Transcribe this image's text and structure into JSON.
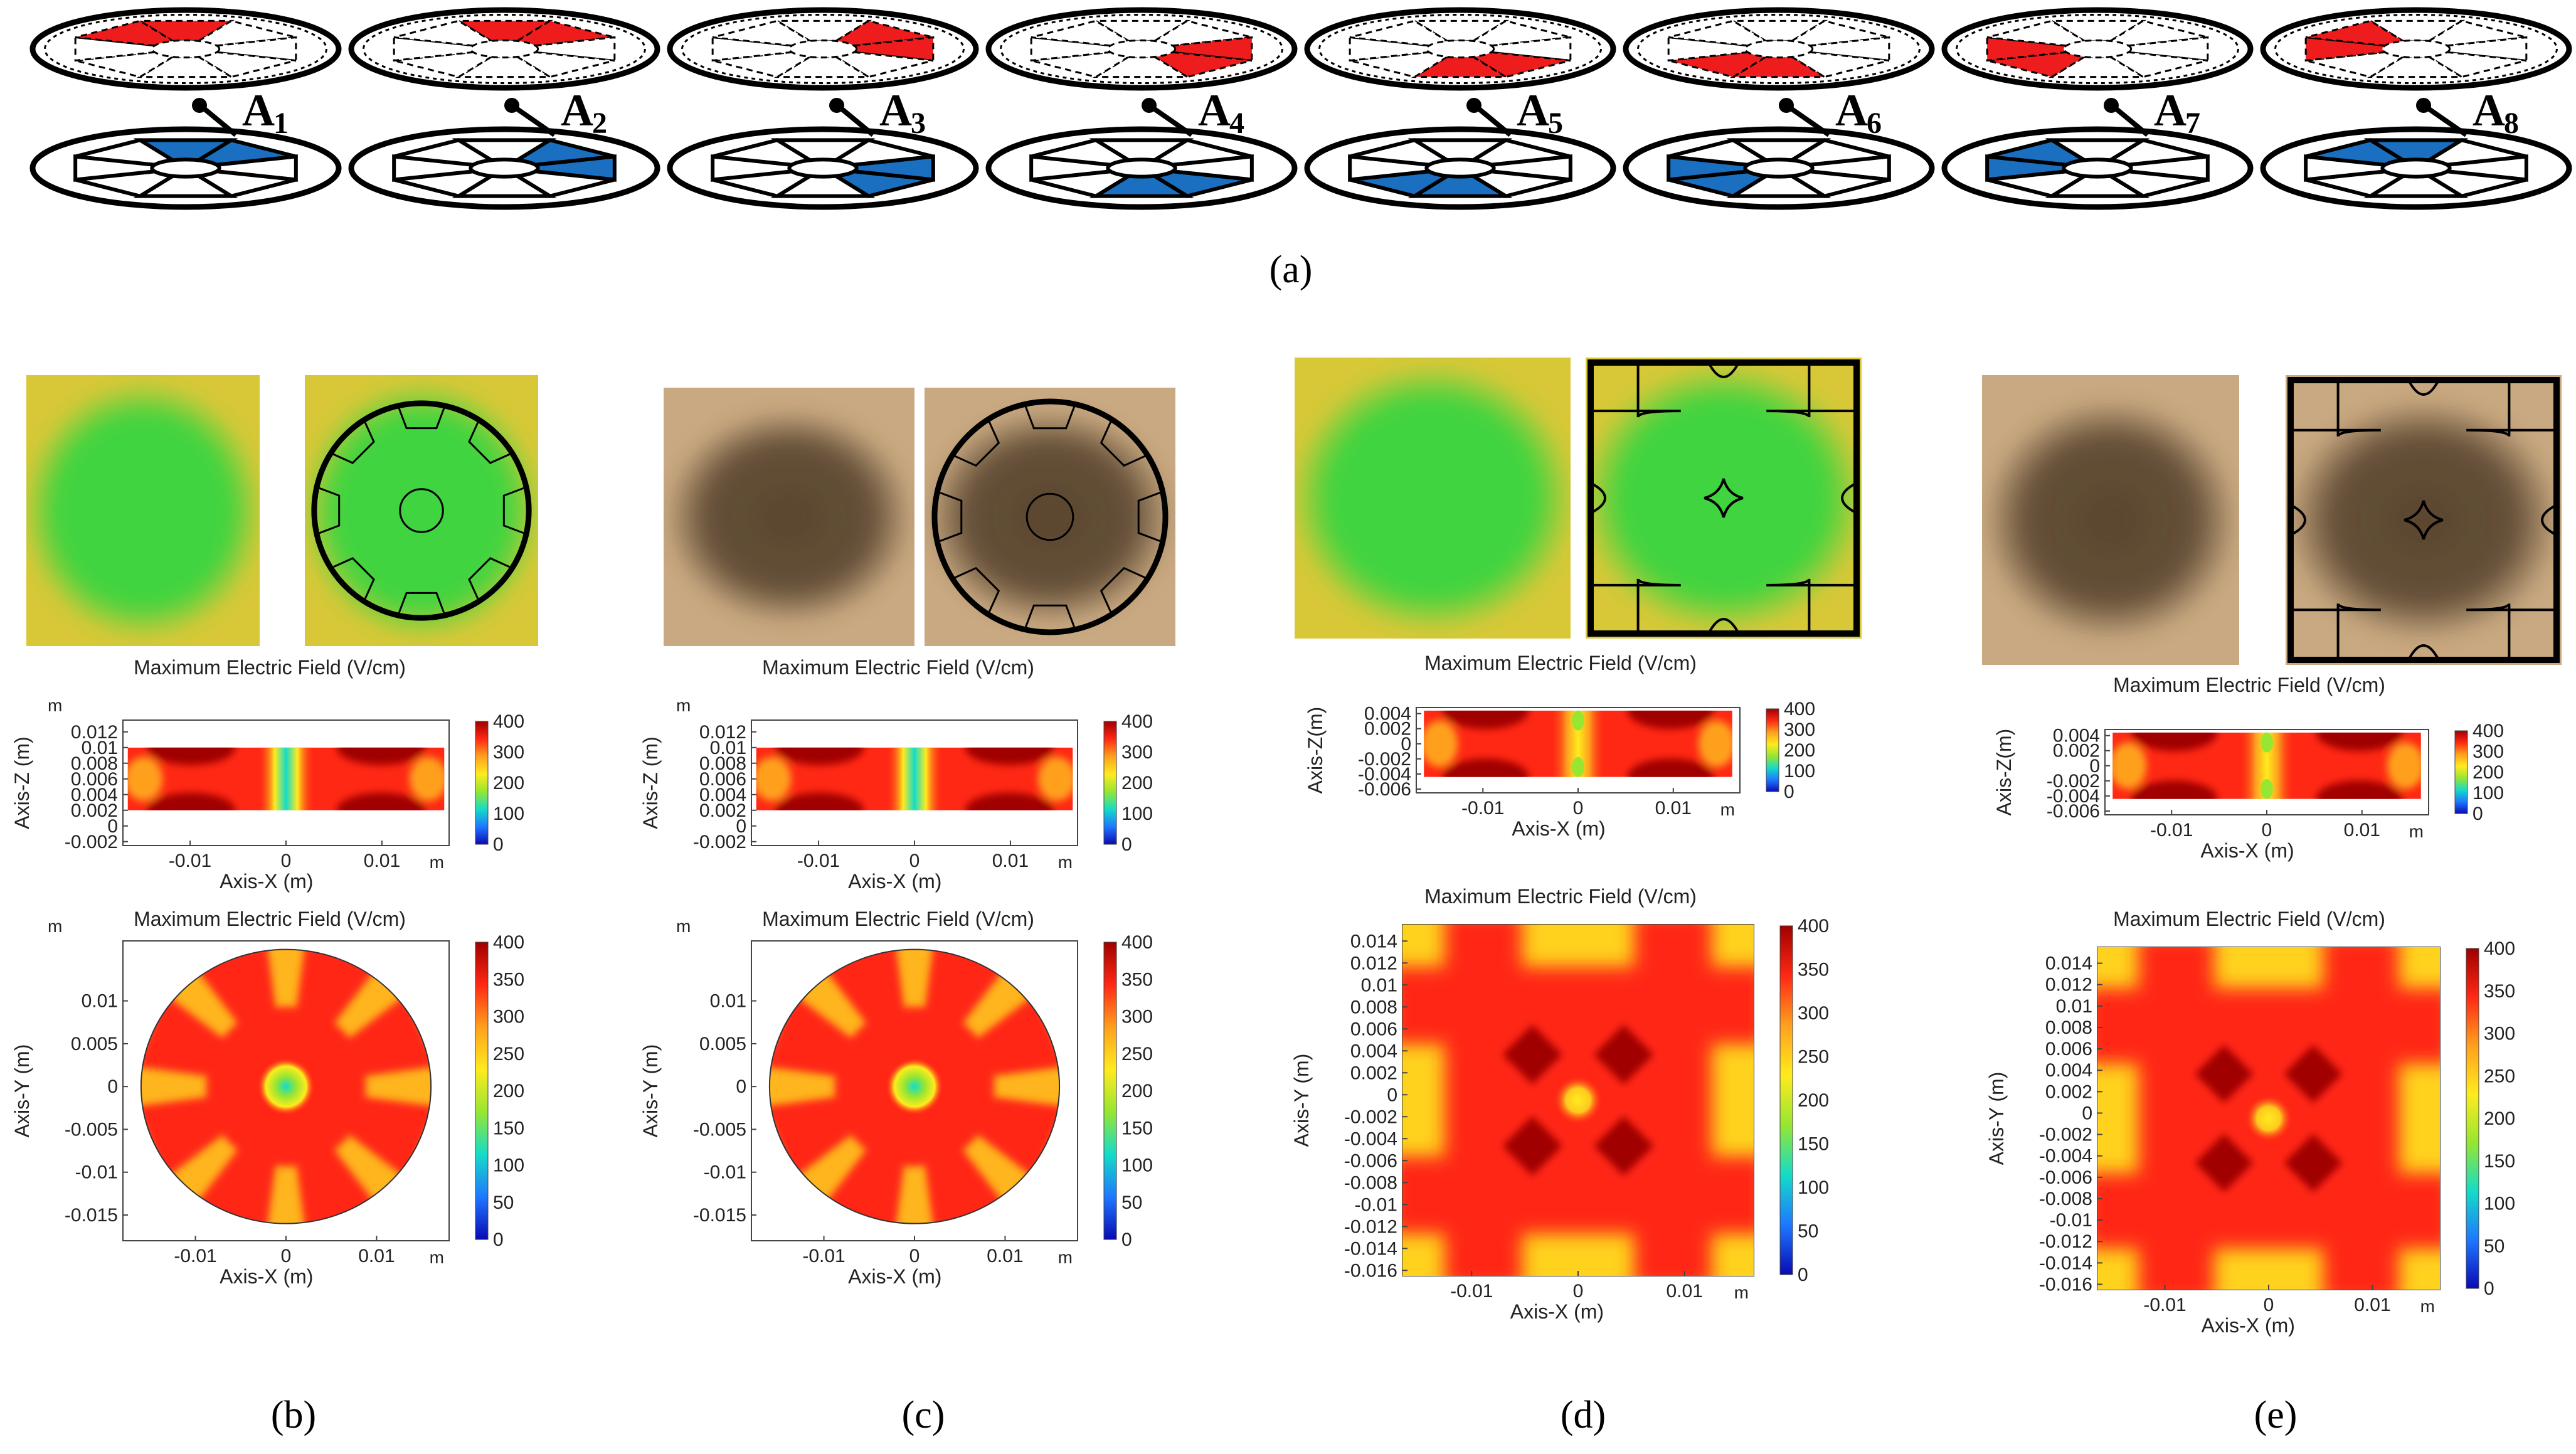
{
  "figure": {
    "panel_labels": [
      "(a)",
      "(b)",
      "(c)",
      "(d)",
      "(e)"
    ],
    "colors": {
      "red_electrode": "#ee1c1c",
      "blue_electrode": "#1a6fc0",
      "field_green": "#3fd43f",
      "field_yellow": "#d8c838",
      "stain_brown": "#5a4630",
      "cmap": [
        "#0a0ab4",
        "#1e78ff",
        "#14dcc8",
        "#96e632",
        "#ffeb1e",
        "#ffa01e",
        "#ff2814",
        "#a00000"
      ]
    },
    "panel_a": {
      "activations": [
        {
          "letter": "A",
          "sub": "1",
          "red": [
            7,
            0
          ],
          "blue": [
            0,
            1
          ]
        },
        {
          "letter": "A",
          "sub": "2",
          "red": [
            0,
            1
          ],
          "blue": [
            1,
            2
          ]
        },
        {
          "letter": "A",
          "sub": "3",
          "red": [
            1,
            2
          ],
          "blue": [
            2,
            3
          ]
        },
        {
          "letter": "A",
          "sub": "4",
          "red": [
            2,
            3
          ],
          "blue": [
            3,
            4
          ]
        },
        {
          "letter": "A",
          "sub": "5",
          "red": [
            3,
            4
          ],
          "blue": [
            4,
            5
          ]
        },
        {
          "letter": "A",
          "sub": "6",
          "red": [
            4,
            5
          ],
          "blue": [
            5,
            6
          ]
        },
        {
          "letter": "A",
          "sub": "7",
          "red": [
            5,
            6
          ],
          "blue": [
            6,
            7
          ]
        },
        {
          "letter": "A",
          "sub": "8",
          "red": [
            6,
            7
          ],
          "blue": [
            7,
            0
          ]
        }
      ]
    }
  },
  "chart_data": [
    {
      "id": "b-side",
      "type": "heatmap",
      "shape": "rect",
      "title": "Maximum Electric Field",
      "unit": "(V/cm)",
      "xlabel": "Axis-X (m)",
      "ylabel": "Axis-Z (m)",
      "x_unit": "m",
      "y_unit": "m",
      "xlim": [
        -0.017,
        0.017
      ],
      "ylim": [
        -0.0025,
        0.0135
      ],
      "xticks": [
        {
          "v": -0.01,
          "label": "-0.01"
        },
        {
          "v": 0,
          "label": "0"
        },
        {
          "v": 0.01,
          "label": "0.01"
        }
      ],
      "yticks": [
        {
          "v": 0.012,
          "label": "0.012"
        },
        {
          "v": 0.01,
          "label": "0.01"
        },
        {
          "v": 0.008,
          "label": "0.008"
        },
        {
          "v": 0.006,
          "label": "0.006"
        },
        {
          "v": 0.004,
          "label": "0.004"
        },
        {
          "v": 0.002,
          "label": "0.002"
        },
        {
          "v": 0,
          "label": "0"
        },
        {
          "v": -0.002,
          "label": "-0.002"
        }
      ],
      "plate": {
        "x": [
          -0.0165,
          0.0165
        ],
        "y": [
          0.002,
          0.01
        ]
      },
      "colorbar": {
        "min": 0,
        "max": 400,
        "ticks": [
          "400",
          "300",
          "200",
          "100",
          "0"
        ]
      }
    },
    {
      "id": "b-top",
      "type": "heatmap",
      "shape": "circle",
      "title": "Maximum Electric Field",
      "unit": "(V/cm)",
      "xlabel": "Axis-X (m)",
      "ylabel": "Axis-Y (m)",
      "x_unit": "m",
      "y_unit": "m",
      "xlim": [
        -0.018,
        0.018
      ],
      "ylim": [
        -0.018,
        0.017
      ],
      "radius": 0.016,
      "xticks": [
        {
          "v": -0.01,
          "label": "-0.01"
        },
        {
          "v": 0,
          "label": "0"
        },
        {
          "v": 0.01,
          "label": "0.01"
        }
      ],
      "yticks": [
        {
          "v": 0.01,
          "label": "0.01"
        },
        {
          "v": 0.005,
          "label": "0.005"
        },
        {
          "v": 0,
          "label": "0"
        },
        {
          "v": -0.005,
          "label": "-0.005"
        },
        {
          "v": -0.01,
          "label": "-0.01"
        },
        {
          "v": -0.015,
          "label": "-0.015"
        }
      ],
      "colorbar": {
        "min": 0,
        "max": 400,
        "ticks": [
          "400",
          "350",
          "300",
          "250",
          "200",
          "150",
          "100",
          "50",
          "0"
        ]
      }
    },
    {
      "id": "c-side",
      "type": "heatmap",
      "shape": "rect",
      "title": "Maximum Electric Field",
      "unit": "(V/cm)",
      "xlabel": "Axis-X (m)",
      "ylabel": "Axis-Z (m)",
      "x_unit": "m",
      "y_unit": "m",
      "xlim": [
        -0.017,
        0.017
      ],
      "ylim": [
        -0.0025,
        0.0135
      ],
      "xticks": [
        {
          "v": -0.01,
          "label": "-0.01"
        },
        {
          "v": 0,
          "label": "0"
        },
        {
          "v": 0.01,
          "label": "0.01"
        }
      ],
      "yticks": [
        {
          "v": 0.012,
          "label": "0.012"
        },
        {
          "v": 0.01,
          "label": "0.01"
        },
        {
          "v": 0.008,
          "label": "0.008"
        },
        {
          "v": 0.006,
          "label": "0.006"
        },
        {
          "v": 0.004,
          "label": "0.004"
        },
        {
          "v": 0.002,
          "label": "0.002"
        },
        {
          "v": 0,
          "label": "0"
        },
        {
          "v": -0.002,
          "label": "-0.002"
        }
      ],
      "plate": {
        "x": [
          -0.0165,
          0.0165
        ],
        "y": [
          0.002,
          0.01
        ]
      },
      "colorbar": {
        "min": 0,
        "max": 400,
        "ticks": [
          "400",
          "300",
          "200",
          "100",
          "0"
        ]
      }
    },
    {
      "id": "c-top",
      "type": "heatmap",
      "shape": "circle",
      "title": "Maximum Electric Field",
      "unit": "(V/cm)",
      "xlabel": "Axis-X (m)",
      "ylabel": "Axis-Y (m)",
      "x_unit": "m",
      "y_unit": "m",
      "xlim": [
        -0.018,
        0.018
      ],
      "ylim": [
        -0.018,
        0.017
      ],
      "radius": 0.016,
      "xticks": [
        {
          "v": -0.01,
          "label": "-0.01"
        },
        {
          "v": 0,
          "label": "0"
        },
        {
          "v": 0.01,
          "label": "0.01"
        }
      ],
      "yticks": [
        {
          "v": 0.01,
          "label": "0.01"
        },
        {
          "v": 0.005,
          "label": "0.005"
        },
        {
          "v": 0,
          "label": "0"
        },
        {
          "v": -0.005,
          "label": "-0.005"
        },
        {
          "v": -0.01,
          "label": "-0.01"
        },
        {
          "v": -0.015,
          "label": "-0.015"
        }
      ],
      "colorbar": {
        "min": 0,
        "max": 400,
        "ticks": [
          "400",
          "350",
          "300",
          "250",
          "200",
          "150",
          "100",
          "50",
          "0"
        ]
      }
    },
    {
      "id": "d-side",
      "type": "heatmap",
      "shape": "rect",
      "title": "Maximum Electric Field",
      "unit": "(V/cm)",
      "xlabel": "Axis-X (m)",
      "ylabel": "Axis-Z(m)",
      "x_unit": "m",
      "y_unit": "",
      "xlim": [
        -0.017,
        0.017
      ],
      "ylim": [
        -0.0065,
        0.0048
      ],
      "xticks": [
        {
          "v": -0.01,
          "label": "-0.01"
        },
        {
          "v": 0,
          "label": "0"
        },
        {
          "v": 0.01,
          "label": "0.01"
        }
      ],
      "yticks": [
        {
          "v": 0.004,
          "label": "0.004"
        },
        {
          "v": 0.002,
          "label": "0.002"
        },
        {
          "v": 0,
          "label": "0"
        },
        {
          "v": -0.002,
          "label": "-0.002"
        },
        {
          "v": -0.004,
          "label": "-0.004"
        },
        {
          "v": -0.006,
          "label": "-0.006"
        }
      ],
      "plate": {
        "x": [
          -0.0162,
          0.0162
        ],
        "y": [
          -0.0044,
          0.0044
        ]
      },
      "colorbar": {
        "min": 0,
        "max": 400,
        "ticks": [
          "400",
          "300",
          "200",
          "100",
          "0"
        ]
      }
    },
    {
      "id": "d-top",
      "type": "heatmap",
      "shape": "square",
      "title": "Maximum Electric Field",
      "unit": "(V/cm)",
      "xlabel": "Axis-X (m)",
      "ylabel": "Axis-Y (m)",
      "x_unit": "m",
      "y_unit": "",
      "xlim": [
        -0.0165,
        0.0165
      ],
      "ylim": [
        -0.0165,
        0.0155
      ],
      "xticks": [
        {
          "v": -0.01,
          "label": "-0.01"
        },
        {
          "v": 0,
          "label": "0"
        },
        {
          "v": 0.01,
          "label": "0.01"
        }
      ],
      "yticks": [
        {
          "v": 0.014,
          "label": "0.014"
        },
        {
          "v": 0.012,
          "label": "0.012"
        },
        {
          "v": 0.01,
          "label": "0.01"
        },
        {
          "v": 0.008,
          "label": "0.008"
        },
        {
          "v": 0.006,
          "label": "0.006"
        },
        {
          "v": 0.004,
          "label": "0.004"
        },
        {
          "v": 0.002,
          "label": "0.002"
        },
        {
          "v": 0,
          "label": "0"
        },
        {
          "v": -0.002,
          "label": "-0.002"
        },
        {
          "v": -0.004,
          "label": "-0.004"
        },
        {
          "v": -0.006,
          "label": "-0.006"
        },
        {
          "v": -0.008,
          "label": "-0.008"
        },
        {
          "v": -0.01,
          "label": "-0.01"
        },
        {
          "v": -0.012,
          "label": "-0.012"
        },
        {
          "v": -0.014,
          "label": "-0.014"
        },
        {
          "v": -0.016,
          "label": "-0.016"
        }
      ],
      "colorbar": {
        "min": 0,
        "max": 400,
        "ticks": [
          "400",
          "350",
          "300",
          "250",
          "200",
          "150",
          "100",
          "50",
          "0"
        ]
      }
    },
    {
      "id": "e-side",
      "type": "heatmap",
      "shape": "rect",
      "title": "Maximum Electric Field",
      "unit": "(V/cm)",
      "xlabel": "Axis-X (m)",
      "ylabel": "Axis-Z(m)",
      "x_unit": "m",
      "y_unit": "",
      "xlim": [
        -0.017,
        0.017
      ],
      "ylim": [
        -0.0065,
        0.0048
      ],
      "xticks": [
        {
          "v": -0.01,
          "label": "-0.01"
        },
        {
          "v": 0,
          "label": "0"
        },
        {
          "v": 0.01,
          "label": "0.01"
        }
      ],
      "yticks": [
        {
          "v": 0.004,
          "label": "0.004"
        },
        {
          "v": 0.002,
          "label": "0.002"
        },
        {
          "v": 0,
          "label": "0"
        },
        {
          "v": -0.002,
          "label": "-0.002"
        },
        {
          "v": -0.004,
          "label": "-0.004"
        },
        {
          "v": -0.006,
          "label": "-0.006"
        }
      ],
      "plate": {
        "x": [
          -0.0162,
          0.0162
        ],
        "y": [
          -0.0044,
          0.0044
        ]
      },
      "colorbar": {
        "min": 0,
        "max": 400,
        "ticks": [
          "400",
          "300",
          "200",
          "100",
          "0"
        ]
      }
    },
    {
      "id": "e-top",
      "type": "heatmap",
      "shape": "square",
      "title": "Maximum Electric Field",
      "unit": "(V/cm)",
      "xlabel": "Axis-X (m)",
      "ylabel": "Axis-Y (m)",
      "x_unit": "m",
      "y_unit": "",
      "xlim": [
        -0.0165,
        0.0165
      ],
      "ylim": [
        -0.0165,
        0.0155
      ],
      "xticks": [
        {
          "v": -0.01,
          "label": "-0.01"
        },
        {
          "v": 0,
          "label": "0"
        },
        {
          "v": 0.01,
          "label": "0.01"
        }
      ],
      "yticks": [
        {
          "v": 0.014,
          "label": "0.014"
        },
        {
          "v": 0.012,
          "label": "0.012"
        },
        {
          "v": 0.01,
          "label": "0.01"
        },
        {
          "v": 0.008,
          "label": "0.008"
        },
        {
          "v": 0.006,
          "label": "0.006"
        },
        {
          "v": 0.004,
          "label": "0.004"
        },
        {
          "v": 0.002,
          "label": "0.002"
        },
        {
          "v": 0,
          "label": "0"
        },
        {
          "v": -0.002,
          "label": "-0.002"
        },
        {
          "v": -0.004,
          "label": "-0.004"
        },
        {
          "v": -0.006,
          "label": "-0.006"
        },
        {
          "v": -0.008,
          "label": "-0.008"
        },
        {
          "v": -0.01,
          "label": "-0.01"
        },
        {
          "v": -0.012,
          "label": "-0.012"
        },
        {
          "v": -0.014,
          "label": "-0.014"
        },
        {
          "v": -0.016,
          "label": "-0.016"
        }
      ],
      "colorbar": {
        "min": 0,
        "max": 400,
        "ticks": [
          "400",
          "350",
          "300",
          "250",
          "200",
          "150",
          "100",
          "50",
          "0"
        ]
      }
    }
  ]
}
